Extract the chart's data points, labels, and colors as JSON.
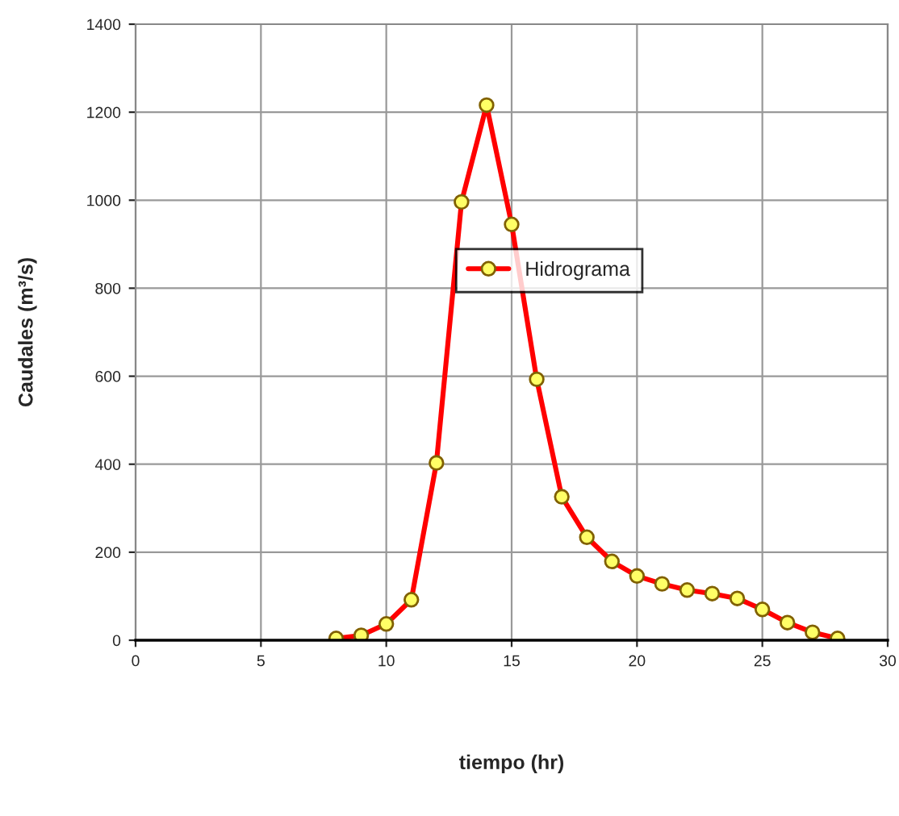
{
  "chart_data": {
    "type": "line",
    "xlabel": "tiempo (hr)",
    "ylabel": "Caudales (m³/s)",
    "x": [
      8,
      9,
      10,
      11,
      12,
      13,
      14,
      15,
      16,
      17,
      18,
      19,
      20,
      21,
      22,
      23,
      24,
      25,
      26,
      27,
      28
    ],
    "series": [
      {
        "name": "Hidrograma",
        "color": "#ff0000",
        "values": [
          4,
          11,
          37,
          92,
          403,
          996,
          1216,
          945,
          593,
          326,
          234,
          179,
          146,
          128,
          114,
          106,
          95,
          70,
          40,
          18,
          4
        ]
      }
    ],
    "xlim": [
      0,
      30
    ],
    "xticks": [
      0,
      5,
      10,
      15,
      20,
      25,
      30
    ],
    "ylim": [
      0,
      1400
    ],
    "yticks": [
      0,
      200,
      400,
      600,
      800,
      1000,
      1200,
      1400
    ],
    "grid": true,
    "legend": "center",
    "marker": "circle",
    "line_style": "solid"
  }
}
